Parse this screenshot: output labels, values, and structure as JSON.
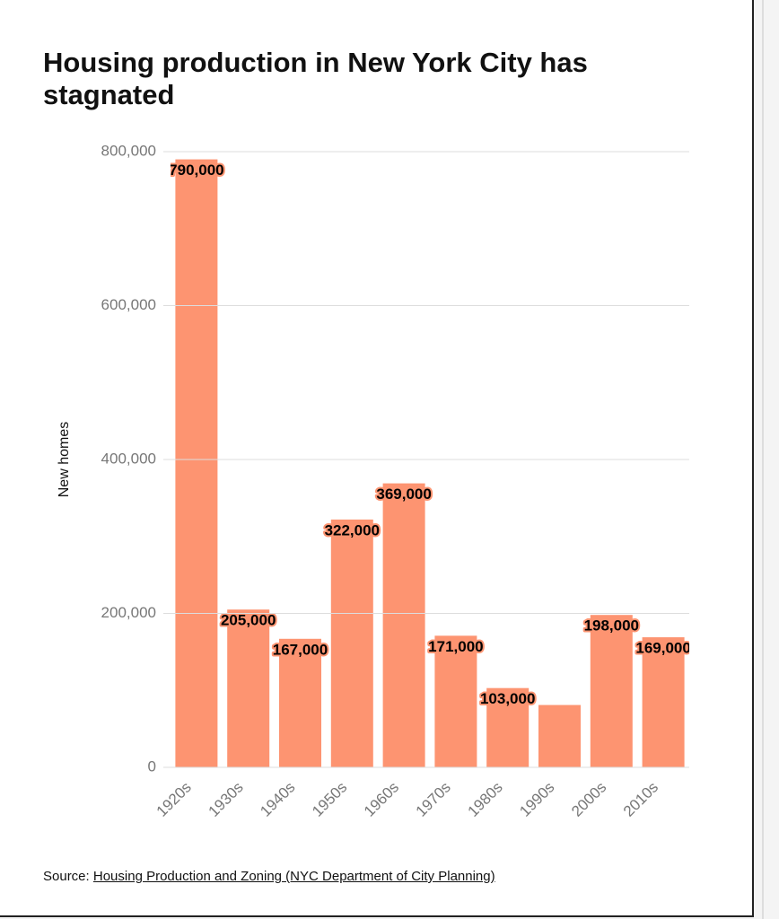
{
  "chart_data": {
    "type": "bar",
    "title": "Housing production in New York City has stagnated",
    "y_label": "New homes",
    "categories": [
      "1920s",
      "1930s",
      "1940s",
      "1950s",
      "1960s",
      "1970s",
      "1980s",
      "1990s",
      "2000s",
      "2010s"
    ],
    "values": [
      790000,
      205000,
      167000,
      322000,
      369000,
      171000,
      103000,
      81000,
      198000,
      169000
    ],
    "value_labels": [
      "790,000",
      "205,000",
      "167,000",
      "322,000",
      "369,000",
      "171,000",
      "103,000",
      null,
      "198,000",
      "169,000"
    ],
    "color": "#fd9471",
    "ylim": [
      0,
      800000
    ],
    "yticks": [
      0,
      {
        "value": 200000,
        "label": "200,000"
      },
      {
        "value": 400000,
        "label": "400,000"
      },
      {
        "value": 600000,
        "label": "600,000"
      },
      {
        "value": 800000,
        "label": "800,000"
      }
    ],
    "grid": true,
    "source_label": "Source:",
    "source_link": "Housing Production and Zoning (NYC Department of City Planning)"
  }
}
